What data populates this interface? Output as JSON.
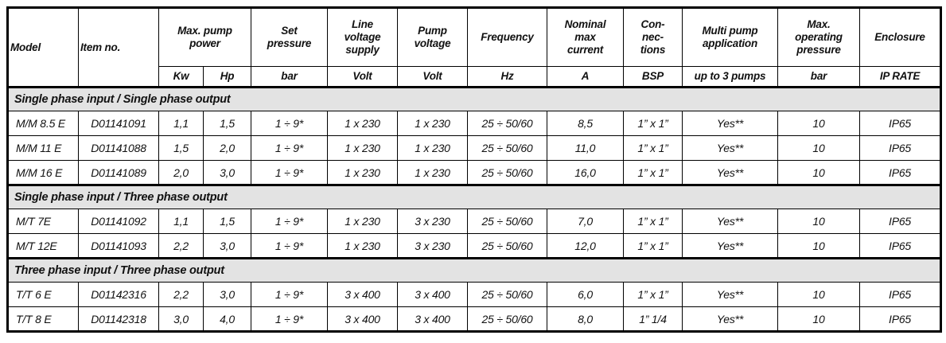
{
  "table": {
    "colors": {
      "section_background": "#e3e3e3",
      "border": "#000000",
      "text": "#111111",
      "page_background": "#ffffff"
    },
    "column_keys": [
      "model",
      "item_no",
      "kw",
      "hp",
      "set_pressure",
      "line_voltage",
      "pump_voltage",
      "frequency",
      "current",
      "connections",
      "multi_pump",
      "max_op_pressure",
      "enclosure"
    ],
    "header": {
      "model": "Model",
      "item_no": "Item no.",
      "max_pump_power": "Max. pump\npower",
      "set_pressure": "Set\npressure",
      "line_voltage": "Line\nvoltage\nsupply",
      "pump_voltage": "Pump\nvoltage",
      "frequency": "Frequency",
      "nominal_max_current": "Nominal\nmax\ncurrent",
      "connections": "Con-\nnec-\ntions",
      "multi_pump": "Multi pump\napplication",
      "max_operating_pressure": "Max.\noperating\npressure",
      "enclosure": "Enclosure"
    },
    "units": {
      "kw": "Kw",
      "hp": "Hp",
      "set_pressure": "bar",
      "line_voltage": "Volt",
      "pump_voltage": "Volt",
      "frequency": "Hz",
      "current": "A",
      "connections": "BSP",
      "multi_pump": "up to 3 pumps",
      "max_op_pressure": "bar",
      "enclosure": "IP RATE"
    },
    "sections": [
      {
        "title": "Single phase input / Single phase output",
        "rows": [
          {
            "model": "M/M 8.5 E",
            "item_no": "D01141091",
            "kw": "1,1",
            "hp": "1,5",
            "set_pressure": "1 ÷ 9*",
            "line_voltage": "1 x 230",
            "pump_voltage": "1 x 230",
            "frequency": "25 ÷ 50/60",
            "current": "8,5",
            "connections": "1” x 1”",
            "multi_pump": "Yes**",
            "max_op_pressure": "10",
            "enclosure": "IP65"
          },
          {
            "model": "M/M 11 E",
            "item_no": "D01141088",
            "kw": "1,5",
            "hp": "2,0",
            "set_pressure": "1 ÷ 9*",
            "line_voltage": "1 x 230",
            "pump_voltage": "1 x 230",
            "frequency": "25 ÷ 50/60",
            "current": "11,0",
            "connections": "1” x 1”",
            "multi_pump": "Yes**",
            "max_op_pressure": "10",
            "enclosure": "IP65"
          },
          {
            "model": "M/M 16 E",
            "item_no": "D01141089",
            "kw": "2,0",
            "hp": "3,0",
            "set_pressure": "1 ÷ 9*",
            "line_voltage": "1 x 230",
            "pump_voltage": "1 x 230",
            "frequency": "25 ÷ 50/60",
            "current": "16,0",
            "connections": "1” x 1”",
            "multi_pump": "Yes**",
            "max_op_pressure": "10",
            "enclosure": "IP65"
          }
        ]
      },
      {
        "title": "Single phase input / Three phase output",
        "rows": [
          {
            "model": "M/T 7E",
            "item_no": "D01141092",
            "kw": "1,1",
            "hp": "1,5",
            "set_pressure": "1 ÷ 9*",
            "line_voltage": "1 x 230",
            "pump_voltage": "3 x 230",
            "frequency": "25 ÷ 50/60",
            "current": "7,0",
            "connections": "1” x 1”",
            "multi_pump": "Yes**",
            "max_op_pressure": "10",
            "enclosure": "IP65"
          },
          {
            "model": "M/T 12E",
            "item_no": "D01141093",
            "kw": "2,2",
            "hp": "3,0",
            "set_pressure": "1 ÷ 9*",
            "line_voltage": "1 x 230",
            "pump_voltage": "3 x 230",
            "frequency": "25 ÷ 50/60",
            "current": "12,0",
            "connections": "1” x 1”",
            "multi_pump": "Yes**",
            "max_op_pressure": "10",
            "enclosure": "IP65"
          }
        ]
      },
      {
        "title": "Three phase input / Three phase output",
        "rows": [
          {
            "model": "T/T 6 E",
            "item_no": "D01142316",
            "kw": "2,2",
            "hp": "3,0",
            "set_pressure": "1 ÷ 9*",
            "line_voltage": "3 x 400",
            "pump_voltage": "3 x 400",
            "frequency": "25 ÷ 50/60",
            "current": "6,0",
            "connections": "1” x 1”",
            "multi_pump": "Yes**",
            "max_op_pressure": "10",
            "enclosure": "IP65"
          },
          {
            "model": "T/T 8 E",
            "item_no": "D01142318",
            "kw": "3,0",
            "hp": "4,0",
            "set_pressure": "1 ÷ 9*",
            "line_voltage": "3 x 400",
            "pump_voltage": "3 x 400",
            "frequency": "25 ÷ 50/60",
            "current": "8,0",
            "connections": "1” 1/4",
            "multi_pump": "Yes**",
            "max_op_pressure": "10",
            "enclosure": "IP65"
          }
        ]
      }
    ]
  }
}
